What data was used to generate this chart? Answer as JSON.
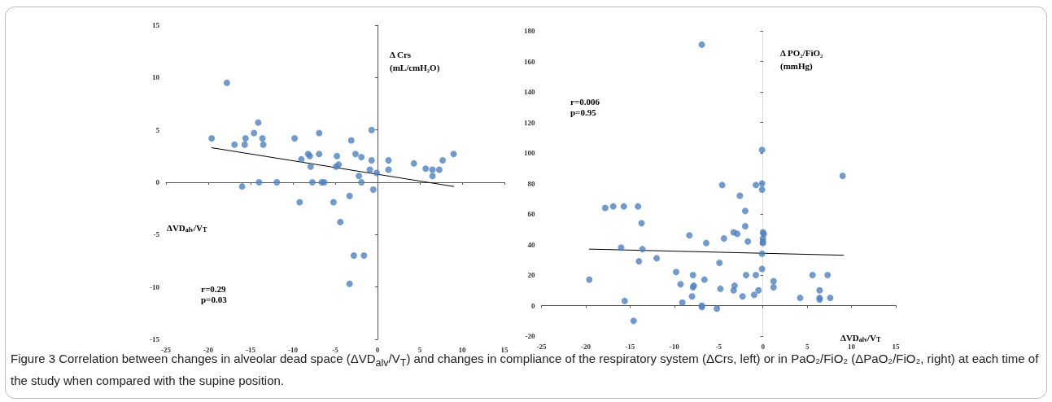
{
  "chart_data": [
    {
      "type": "scatter",
      "xlabel": "ΔVD$_{alv}$/V$_{T}$",
      "ylabel": "Δ Crs\n(mL/cmH₂O)",
      "annotations": [
        "r=0.29",
        "p=0.03",
        "Figure 3 Correlation between changes in alveolar dead space (ΔVD$_{alv}$/V$_{T}$) and changes in compliance of the respiratory system (ΔCrs, left) or in PaO₂/FiO₂ (ΔPaO₂/FiO₂, right) at each time of the study when compared with the supine position."
      ],
      "xlim": [
        -25,
        15
      ],
      "ylim": [
        -15,
        15
      ],
      "xticks": [
        -25,
        -20,
        -15,
        -10,
        -5,
        0,
        5,
        10,
        15
      ],
      "yticks": [
        -15,
        -10,
        -5,
        0,
        5,
        10,
        15
      ],
      "marker": "circle",
      "series": [
        {
          "color": "#4f81bd",
          "x": [
            -19.6,
            -17.8,
            -16.9,
            -15.6,
            -15.7,
            -14.6,
            -14.1,
            -13.6,
            -13.5,
            -14.0,
            -16.0,
            -11.9,
            -9.8,
            -9.0,
            -8.2,
            -8.0,
            -7.9,
            -7.7,
            -6.9,
            -6.9,
            -6.6,
            -6.3,
            -4.8,
            -4.9,
            -4.6,
            -3.1,
            -2.6,
            -1.9,
            -2.2,
            -1.9,
            -0.7,
            -0.7,
            -0.9,
            -0.1,
            -0.5,
            1.3,
            1.3,
            4.3,
            5.7,
            6.5,
            6.5,
            7.3,
            7.7,
            9.0,
            -9.2,
            -5.2,
            -3.3,
            -4.4,
            -2.8,
            -1.6,
            -3.3
          ],
          "values": [
            4.2,
            9.5,
            3.6,
            4.2,
            3.6,
            4.7,
            5.7,
            4.2,
            3.6,
            0,
            -0.4,
            0,
            4.2,
            2.2,
            2.7,
            2.5,
            1.5,
            0,
            4.7,
            2.7,
            0,
            0,
            2.5,
            1.5,
            1.7,
            4.0,
            2.7,
            2.4,
            0.6,
            0,
            5.0,
            2.1,
            1.2,
            0.9,
            -0.7,
            2.1,
            1.2,
            1.8,
            1.3,
            1.2,
            0.6,
            1.2,
            2.1,
            2.7,
            -1.9,
            -1.9,
            -1.3,
            -3.8,
            -7.0,
            -7.0,
            -9.7
          ]
        },
        {
          "type": "line",
          "color": "#000000",
          "line_style": "solid",
          "marker": "none",
          "x": [
            -19.6,
            9.0
          ],
          "values": [
            3.3,
            -0.4
          ]
        }
      ]
    },
    {
      "type": "scatter",
      "xlabel": "ΔVD$_{alv}$/V$_{T}$",
      "ylabel": "Δ PO₂/FiO₂\n(mmHg)",
      "annotations": [
        "r=0.006",
        "p=0.95"
      ],
      "xlim": [
        -25,
        15
      ],
      "ylim": [
        -20,
        180
      ],
      "xticks": [
        -25,
        -20,
        -15,
        -10,
        -5,
        0,
        5,
        10,
        15
      ],
      "yticks": [
        -20,
        0,
        20,
        40,
        60,
        80,
        100,
        120,
        140,
        160,
        180
      ],
      "marker": "circle",
      "series": [
        {
          "color": "#4f81bd",
          "x": [
            -6.9,
            -0.1,
            9.0,
            -4.6,
            -0.1,
            -0.8,
            -0.1,
            -2.6,
            -17.8,
            -16.9,
            -15.7,
            -14.1,
            -13.7,
            -2.0,
            -2.0,
            -3.3,
            -2.9,
            0,
            0.1,
            -8.3,
            -4.4,
            0,
            0,
            0,
            -1.7,
            -6.4,
            -16.0,
            -13.6,
            -0.1,
            -14.0,
            -12.0,
            -4.9,
            -0.1,
            -9.8,
            -7.9,
            -1.9,
            -0.8,
            5.6,
            7.3,
            -19.6,
            -6.6,
            -9.3,
            -7.8,
            -7.9,
            -3.2,
            1.2,
            1.2,
            -4.8,
            -3.3,
            6.4,
            -0.5,
            -1.0,
            -2.3,
            -8.0,
            4.2,
            6.4,
            6.4,
            7.6,
            -15.6,
            -9.1,
            -6.9,
            -6.9,
            -5.2,
            -14.6
          ],
          "values": [
            171,
            102,
            85,
            79,
            80,
            79,
            76,
            72,
            64,
            65,
            65,
            65,
            54,
            62,
            52,
            48,
            47,
            48,
            47,
            46,
            44,
            44,
            42,
            41,
            42,
            41,
            38,
            37,
            34,
            29,
            31,
            28,
            24,
            22,
            20,
            20,
            20,
            20,
            20,
            17,
            17,
            14,
            13,
            12,
            13,
            16,
            12,
            11,
            10,
            10,
            10,
            7,
            6,
            6,
            5,
            5,
            4,
            5,
            3,
            2,
            0,
            -1,
            -2,
            -10
          ]
        },
        {
          "type": "line",
          "color": "#000000",
          "line_style": "solid",
          "marker": "none",
          "x": [
            -19.6,
            9.1
          ],
          "values": [
            37,
            33
          ]
        }
      ]
    }
  ]
}
